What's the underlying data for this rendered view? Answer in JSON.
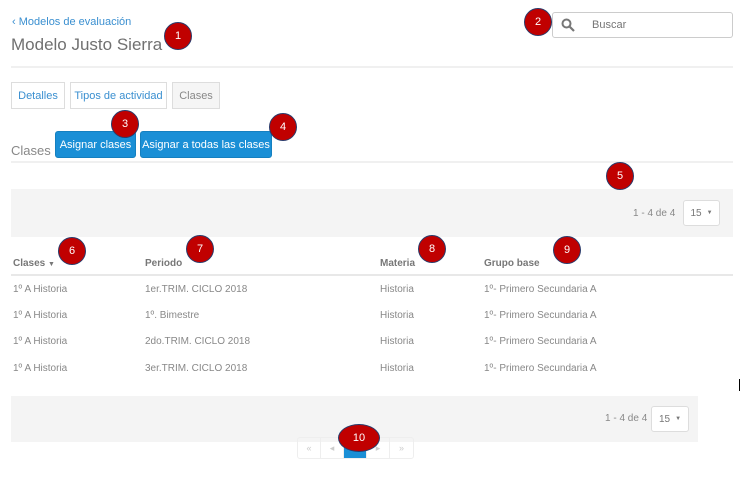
{
  "header": {
    "back_label": "Modelos de evaluación",
    "title": "Modelo Justo Sierra",
    "search_placeholder": "Buscar"
  },
  "tabs": [
    {
      "label": "Detalles"
    },
    {
      "label": "Tipos de actividad"
    },
    {
      "label": "Clases",
      "active": true
    }
  ],
  "section": {
    "label": "Clases",
    "assign_label": "Asignar clases",
    "assign_all_label": "Asignar a todas las clases"
  },
  "pager_top": {
    "count": "1 - 4 de 4",
    "page_size": "15"
  },
  "table": {
    "columns": [
      "Clases",
      "Periodo",
      "Materia",
      "Grupo base"
    ],
    "sort_column": "Clases",
    "rows": [
      [
        "1º A Historia",
        "1er.TRIM. CICLO 2018",
        "Historia",
        "1º- Primero Secundaria A"
      ],
      [
        "1º A Historia",
        "1º. Bimestre",
        "Historia",
        "1º- Primero Secundaria A"
      ],
      [
        "1º A Historia",
        "2do.TRIM. CICLO 2018",
        "Historia",
        "1º- Primero Secundaria A"
      ],
      [
        "1º A Historia",
        "3er.TRIM. CICLO 2018",
        "Historia",
        "1º- Primero Secundaria A"
      ]
    ]
  },
  "pager_bottom": {
    "count": "1 - 4 de 4",
    "page_size": "15"
  },
  "pagination": {
    "first": "«",
    "prev": "◂",
    "current": "1",
    "next": "▸",
    "last": "»"
  },
  "markers": [
    "1",
    "2",
    "3",
    "4",
    "5",
    "6",
    "7",
    "8",
    "9",
    "10"
  ],
  "colors": {
    "accent": "#1a8fd6",
    "link": "#3a8fd0",
    "marker": "#c00000"
  }
}
